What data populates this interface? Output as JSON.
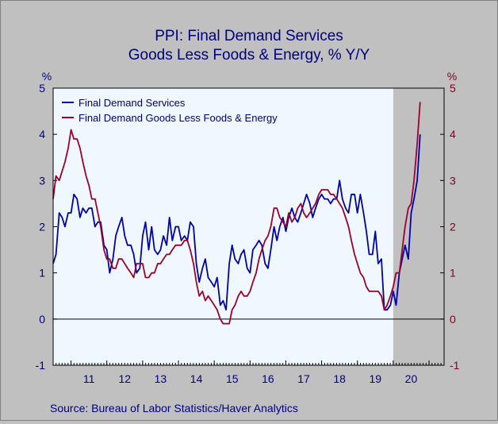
{
  "chart_data": {
    "type": "line",
    "title": "PPI: Final Demand Services",
    "subtitle": "Goods Less Foods & Energy, % Y/Y",
    "ylabel_left": "%",
    "ylabel_right": "%",
    "ylim": [
      -1,
      5
    ],
    "yticks": [
      "-1",
      "0",
      "1",
      "2",
      "3",
      "4",
      "5"
    ],
    "xlim": [
      2010.5,
      2021.42
    ],
    "x_tick_labels": [
      "11",
      "12",
      "13",
      "14",
      "15",
      "16",
      "17",
      "18",
      "19",
      "20"
    ],
    "recession_shading": [
      2020.0,
      2021.42
    ],
    "grid": false,
    "legend_position": "top-left",
    "source": "Source:  Bureau of Labor Statistics/Haver Analytics",
    "colors": {
      "services": "#0000b4",
      "goods": "#a0002a",
      "recession": "#c0c0c0",
      "plot_bg": "#f0f8ff"
    },
    "series": [
      {
        "name": "Final Demand Services",
        "axis": "left",
        "values": [
          [
            2010.5,
            1.2
          ],
          [
            2010.58,
            1.4
          ],
          [
            2010.67,
            2.3
          ],
          [
            2010.75,
            2.2
          ],
          [
            2010.83,
            2.0
          ],
          [
            2010.92,
            2.3
          ],
          [
            2011.0,
            2.3
          ],
          [
            2011.08,
            2.7
          ],
          [
            2011.17,
            2.6
          ],
          [
            2011.25,
            2.2
          ],
          [
            2011.33,
            2.4
          ],
          [
            2011.42,
            2.3
          ],
          [
            2011.5,
            2.4
          ],
          [
            2011.58,
            2.4
          ],
          [
            2011.67,
            2.0
          ],
          [
            2011.75,
            2.1
          ],
          [
            2011.83,
            2.1
          ],
          [
            2011.92,
            1.6
          ],
          [
            2012.0,
            1.5
          ],
          [
            2012.08,
            1.0
          ],
          [
            2012.17,
            1.3
          ],
          [
            2012.25,
            1.8
          ],
          [
            2012.33,
            2.0
          ],
          [
            2012.42,
            2.2
          ],
          [
            2012.5,
            1.8
          ],
          [
            2012.58,
            1.6
          ],
          [
            2012.67,
            1.6
          ],
          [
            2012.75,
            1.4
          ],
          [
            2012.83,
            1.0
          ],
          [
            2012.92,
            1.1
          ],
          [
            2013.0,
            1.8
          ],
          [
            2013.08,
            2.1
          ],
          [
            2013.17,
            1.5
          ],
          [
            2013.25,
            2.0
          ],
          [
            2013.33,
            1.5
          ],
          [
            2013.42,
            1.4
          ],
          [
            2013.5,
            1.5
          ],
          [
            2013.58,
            1.8
          ],
          [
            2013.67,
            1.6
          ],
          [
            2013.75,
            2.2
          ],
          [
            2013.83,
            1.7
          ],
          [
            2013.92,
            2.0
          ],
          [
            2014.0,
            2.0
          ],
          [
            2014.08,
            1.7
          ],
          [
            2014.17,
            1.8
          ],
          [
            2014.25,
            1.7
          ],
          [
            2014.33,
            2.1
          ],
          [
            2014.42,
            2.0
          ],
          [
            2014.5,
            1.2
          ],
          [
            2014.58,
            0.8
          ],
          [
            2014.67,
            1.1
          ],
          [
            2014.75,
            1.3
          ],
          [
            2014.83,
            0.9
          ],
          [
            2014.92,
            0.8
          ],
          [
            2015.0,
            0.7
          ],
          [
            2015.08,
            0.9
          ],
          [
            2015.17,
            0.3
          ],
          [
            2015.25,
            0.4
          ],
          [
            2015.33,
            0.2
          ],
          [
            2015.42,
            1.2
          ],
          [
            2015.5,
            1.6
          ],
          [
            2015.58,
            1.3
          ],
          [
            2015.67,
            1.2
          ],
          [
            2015.75,
            1.4
          ],
          [
            2015.83,
            1.5
          ],
          [
            2015.92,
            1.1
          ],
          [
            2016.0,
            1.0
          ],
          [
            2016.08,
            1.5
          ],
          [
            2016.17,
            1.6
          ],
          [
            2016.25,
            1.7
          ],
          [
            2016.33,
            1.6
          ],
          [
            2016.42,
            1.2
          ],
          [
            2016.5,
            1.1
          ],
          [
            2016.58,
            1.5
          ],
          [
            2016.67,
            2.0
          ],
          [
            2016.75,
            1.7
          ],
          [
            2016.83,
            2.0
          ],
          [
            2016.92,
            2.2
          ],
          [
            2017.0,
            1.9
          ],
          [
            2017.08,
            2.2
          ],
          [
            2017.17,
            2.4
          ],
          [
            2017.25,
            2.2
          ],
          [
            2017.33,
            2.1
          ],
          [
            2017.42,
            2.3
          ],
          [
            2017.5,
            2.5
          ],
          [
            2017.58,
            2.7
          ],
          [
            2017.67,
            2.5
          ],
          [
            2017.75,
            2.2
          ],
          [
            2017.83,
            2.4
          ],
          [
            2017.92,
            2.6
          ],
          [
            2018.0,
            2.7
          ],
          [
            2018.08,
            2.6
          ],
          [
            2018.17,
            2.6
          ],
          [
            2018.25,
            2.5
          ],
          [
            2018.33,
            2.6
          ],
          [
            2018.42,
            2.6
          ],
          [
            2018.5,
            3.0
          ],
          [
            2018.58,
            2.6
          ],
          [
            2018.67,
            2.4
          ],
          [
            2018.75,
            2.3
          ],
          [
            2018.83,
            2.7
          ],
          [
            2018.92,
            2.7
          ],
          [
            2019.0,
            2.3
          ],
          [
            2019.08,
            2.7
          ],
          [
            2019.17,
            2.3
          ],
          [
            2019.25,
            1.9
          ],
          [
            2019.33,
            1.4
          ],
          [
            2019.42,
            1.4
          ],
          [
            2019.5,
            1.9
          ],
          [
            2019.58,
            1.2
          ],
          [
            2019.67,
            1.3
          ],
          [
            2019.75,
            0.2
          ],
          [
            2019.83,
            0.2
          ],
          [
            2019.92,
            0.3
          ],
          [
            2020.0,
            0.6
          ],
          [
            2020.08,
            0.3
          ],
          [
            2020.17,
            1.0
          ],
          [
            2020.25,
            1.3
          ],
          [
            2020.33,
            1.6
          ],
          [
            2020.42,
            1.3
          ],
          [
            2020.5,
            2.3
          ],
          [
            2020.58,
            2.6
          ],
          [
            2020.67,
            3.0
          ],
          [
            2020.75,
            4.0
          ]
        ]
      },
      {
        "name": "Final Demand Goods Less Foods & Energy",
        "axis": "right",
        "values": [
          [
            2010.5,
            2.6
          ],
          [
            2010.58,
            3.1
          ],
          [
            2010.67,
            3.0
          ],
          [
            2010.75,
            3.2
          ],
          [
            2010.83,
            3.4
          ],
          [
            2010.92,
            3.7
          ],
          [
            2011.0,
            4.1
          ],
          [
            2011.08,
            3.9
          ],
          [
            2011.17,
            3.9
          ],
          [
            2011.25,
            3.7
          ],
          [
            2011.33,
            3.4
          ],
          [
            2011.42,
            3.1
          ],
          [
            2011.5,
            2.9
          ],
          [
            2011.58,
            2.6
          ],
          [
            2011.67,
            2.6
          ],
          [
            2011.75,
            2.3
          ],
          [
            2011.83,
            2.0
          ],
          [
            2011.92,
            1.5
          ],
          [
            2012.0,
            1.3
          ],
          [
            2012.08,
            1.3
          ],
          [
            2012.17,
            1.1
          ],
          [
            2012.25,
            1.1
          ],
          [
            2012.33,
            1.3
          ],
          [
            2012.42,
            1.3
          ],
          [
            2012.5,
            1.2
          ],
          [
            2012.58,
            1.1
          ],
          [
            2012.67,
            1.0
          ],
          [
            2012.75,
            0.9
          ],
          [
            2012.83,
            1.2
          ],
          [
            2012.92,
            1.2
          ],
          [
            2013.0,
            1.2
          ],
          [
            2013.08,
            0.9
          ],
          [
            2013.17,
            0.9
          ],
          [
            2013.25,
            1.0
          ],
          [
            2013.33,
            1.0
          ],
          [
            2013.42,
            1.2
          ],
          [
            2013.5,
            1.2
          ],
          [
            2013.58,
            1.3
          ],
          [
            2013.67,
            1.4
          ],
          [
            2013.75,
            1.4
          ],
          [
            2013.83,
            1.5
          ],
          [
            2013.92,
            1.6
          ],
          [
            2014.0,
            1.6
          ],
          [
            2014.08,
            1.6
          ],
          [
            2014.17,
            1.7
          ],
          [
            2014.25,
            1.7
          ],
          [
            2014.33,
            1.5
          ],
          [
            2014.42,
            1.2
          ],
          [
            2014.5,
            0.8
          ],
          [
            2014.58,
            0.5
          ],
          [
            2014.67,
            0.6
          ],
          [
            2014.75,
            0.4
          ],
          [
            2014.83,
            0.5
          ],
          [
            2014.92,
            0.4
          ],
          [
            2015.0,
            0.3
          ],
          [
            2015.08,
            0.2
          ],
          [
            2015.17,
            0.0
          ],
          [
            2015.25,
            -0.1
          ],
          [
            2015.33,
            -0.1
          ],
          [
            2015.42,
            -0.1
          ],
          [
            2015.5,
            0.2
          ],
          [
            2015.58,
            0.3
          ],
          [
            2015.67,
            0.5
          ],
          [
            2015.75,
            0.6
          ],
          [
            2015.83,
            0.5
          ],
          [
            2015.92,
            0.5
          ],
          [
            2016.0,
            0.6
          ],
          [
            2016.08,
            0.8
          ],
          [
            2016.17,
            1.0
          ],
          [
            2016.25,
            1.3
          ],
          [
            2016.33,
            1.5
          ],
          [
            2016.42,
            1.7
          ],
          [
            2016.5,
            1.8
          ],
          [
            2016.58,
            2.0
          ],
          [
            2016.67,
            2.4
          ],
          [
            2016.75,
            2.4
          ],
          [
            2016.83,
            2.2
          ],
          [
            2016.92,
            2.1
          ],
          [
            2017.0,
            2.0
          ],
          [
            2017.08,
            2.3
          ],
          [
            2017.17,
            2.1
          ],
          [
            2017.25,
            2.2
          ],
          [
            2017.33,
            2.4
          ],
          [
            2017.42,
            2.5
          ],
          [
            2017.5,
            2.3
          ],
          [
            2017.58,
            2.2
          ],
          [
            2017.67,
            2.3
          ],
          [
            2017.75,
            2.4
          ],
          [
            2017.83,
            2.5
          ],
          [
            2017.92,
            2.7
          ],
          [
            2018.0,
            2.8
          ],
          [
            2018.08,
            2.8
          ],
          [
            2018.17,
            2.8
          ],
          [
            2018.25,
            2.7
          ],
          [
            2018.33,
            2.7
          ],
          [
            2018.42,
            2.6
          ],
          [
            2018.5,
            2.5
          ],
          [
            2018.58,
            2.4
          ],
          [
            2018.67,
            2.2
          ],
          [
            2018.75,
            2.0
          ],
          [
            2018.83,
            1.7
          ],
          [
            2018.92,
            1.4
          ],
          [
            2019.0,
            1.2
          ],
          [
            2019.08,
            1.0
          ],
          [
            2019.17,
            0.9
          ],
          [
            2019.25,
            0.7
          ],
          [
            2019.33,
            0.6
          ],
          [
            2019.42,
            0.6
          ],
          [
            2019.5,
            0.6
          ],
          [
            2019.58,
            0.6
          ],
          [
            2019.67,
            0.5
          ],
          [
            2019.75,
            0.2
          ],
          [
            2019.83,
            0.3
          ],
          [
            2019.92,
            0.5
          ],
          [
            2020.0,
            0.7
          ],
          [
            2020.08,
            1.0
          ],
          [
            2020.17,
            1.0
          ],
          [
            2020.25,
            1.5
          ],
          [
            2020.33,
            2.0
          ],
          [
            2020.42,
            2.4
          ],
          [
            2020.5,
            2.5
          ],
          [
            2020.58,
            3.0
          ],
          [
            2020.67,
            3.8
          ],
          [
            2020.75,
            4.7
          ]
        ]
      }
    ]
  }
}
